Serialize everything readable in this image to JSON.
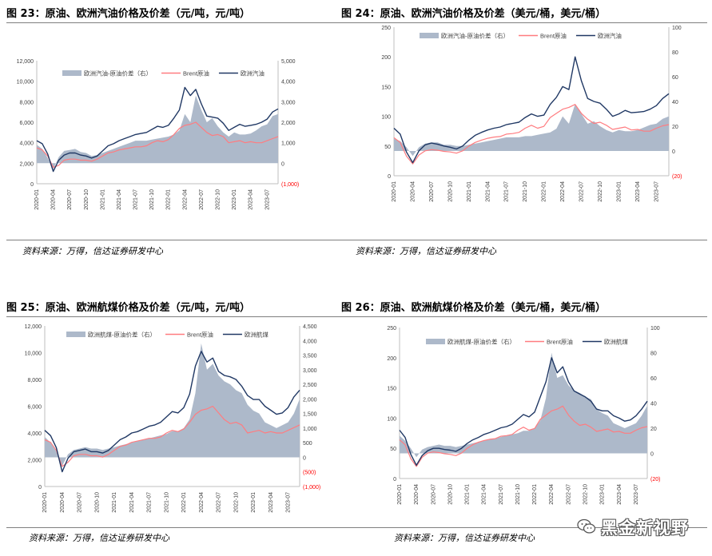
{
  "panels": [
    {
      "id": "p23",
      "title": "图 23：原油、欧洲汽油价格及价差（元/吨，元/吨）",
      "source": "资料来源：万得，信达证券研发中心",
      "chart_data": {
        "type": "area+line",
        "x_tick_labels": [
          "2020-01",
          "2020-04",
          "2020-07",
          "2020-10",
          "2021-01",
          "2021-04",
          "2021-07",
          "2021-10",
          "2022-01",
          "2022-04",
          "2022-07",
          "2022-10",
          "2023-01",
          "2023-04",
          "2023-07"
        ],
        "x_range": [
          "2020-01",
          "2023-09"
        ],
        "left_axis": {
          "range": [
            0,
            12000
          ],
          "ticks": [
            "0",
            "2,000",
            "4,000",
            "6,000",
            "8,000",
            "10,000",
            "12,000"
          ]
        },
        "right_axis": {
          "range": [
            -1000,
            5000
          ],
          "ticks": [
            "(1,000)",
            "0",
            "1,000",
            "2,000",
            "3,000",
            "4,000",
            "5,000"
          ],
          "negative_color": "#ff0000"
        },
        "legend": [
          "欧洲汽油-原油价差（右）",
          "Brent原油",
          "欧洲汽油"
        ],
        "legend_position": "top",
        "series": [
          {
            "name": "欧洲汽油-原油价差（右）",
            "axis": "right",
            "kind": "area",
            "color": "#adb9ca",
            "values": [
              900,
              700,
              250,
              -300,
              300,
              600,
              650,
              700,
              550,
              500,
              350,
              400,
              500,
              600,
              700,
              800,
              900,
              1000,
              1100,
              1100,
              1100,
              1150,
              1200,
              1250,
              1300,
              1400,
              1600,
              2400,
              2000,
              3300,
              2600,
              2000,
              2200,
              1800,
              1500,
              1300,
              1500,
              1400,
              1400,
              1450,
              1600,
              1800,
              1900,
              2300,
              2400
            ]
          },
          {
            "name": "Brent原油",
            "axis": "left",
            "kind": "line",
            "color": "#ff7c80",
            "values": [
              3500,
              3300,
              2700,
              1600,
              1800,
              2300,
              2400,
              2400,
              2300,
              2300,
              2200,
              2400,
              2700,
              3000,
              3100,
              3300,
              3400,
              3500,
              3600,
              3600,
              3700,
              4000,
              4200,
              4100,
              4300,
              4800,
              5400,
              5700,
              5800,
              6000,
              5500,
              5000,
              4700,
              4800,
              4600,
              4000,
              4100,
              4200,
              4000,
              4100,
              4000,
              4000,
              4200,
              4400,
              4600
            ]
          },
          {
            "name": "欧洲汽油",
            "axis": "left",
            "kind": "line",
            "color": "#203864",
            "values": [
              4200,
              3900,
              2900,
              1200,
              2300,
              2800,
              3000,
              3000,
              2800,
              2700,
              2500,
              2700,
              3200,
              3700,
              3900,
              4200,
              4400,
              4600,
              4800,
              4900,
              5000,
              5300,
              5600,
              5500,
              5700,
              6400,
              7200,
              9400,
              8600,
              9200,
              7800,
              6600,
              6500,
              6400,
              5900,
              5200,
              5500,
              5800,
              5600,
              5700,
              5800,
              6000,
              6300,
              7000,
              7300
            ]
          }
        ]
      }
    },
    {
      "id": "p24",
      "title": "图 24：原油、欧洲汽油价格及价差（美元/桶，美元/桶）",
      "source": "资料来源：万得，信达证券研发中心",
      "chart_data": {
        "type": "area+line",
        "x_tick_labels": [
          "2020-01",
          "2020-04",
          "2020-07",
          "2020-10",
          "2021-01",
          "2021-04",
          "2021-07",
          "2021-10",
          "2022-01",
          "2022-04",
          "2022-07",
          "2022-10",
          "2023-01",
          "2023-04",
          "2023-07"
        ],
        "x_range": [
          "2020-01",
          "2023-09"
        ],
        "left_axis": {
          "range": [
            0,
            250
          ],
          "ticks": [
            "0",
            "50",
            "100",
            "150",
            "200",
            "250"
          ]
        },
        "right_axis": {
          "range": [
            -20,
            100
          ],
          "ticks": [
            "(20)",
            "0",
            "20",
            "40",
            "60",
            "80",
            "100"
          ],
          "negative_color": "#ff0000"
        },
        "legend": [
          "欧洲汽油-原油价差（右）",
          "Brent原油",
          "欧洲汽油"
        ],
        "legend_position": "top",
        "series": [
          {
            "name": "欧洲汽油-原油价差（右）",
            "axis": "right",
            "kind": "area",
            "color": "#adb9ca",
            "values": [
              10,
              8,
              3,
              -4,
              3,
              6,
              7,
              7,
              5,
              5,
              4,
              4,
              5,
              6,
              7,
              8,
              9,
              10,
              11,
              11,
              11,
              12,
              12,
              13,
              14,
              15,
              18,
              28,
              22,
              38,
              30,
              22,
              24,
              20,
              17,
              15,
              17,
              16,
              16,
              17,
              19,
              21,
              22,
              26,
              28
            ]
          },
          {
            "name": "Brent原油",
            "axis": "left",
            "kind": "line",
            "color": "#ff7c80",
            "values": [
              64,
              56,
              33,
              20,
              35,
              42,
              44,
              43,
              41,
              40,
              38,
              42,
              50,
              56,
              60,
              63,
              65,
              66,
              70,
              71,
              73,
              80,
              85,
              80,
              83,
              98,
              105,
              112,
              115,
              120,
              105,
              95,
              88,
              90,
              85,
              78,
              80,
              82,
              77,
              78,
              75,
              75,
              80,
              84,
              86
            ]
          },
          {
            "name": "欧洲汽油",
            "axis": "left",
            "kind": "line",
            "color": "#203864",
            "values": [
              80,
              70,
              40,
              22,
              42,
              52,
              55,
              53,
              50,
              48,
              45,
              50,
              60,
              68,
              73,
              77,
              80,
              82,
              86,
              88,
              90,
              98,
              104,
              100,
              102,
              120,
              132,
              150,
              145,
              200,
              160,
              130,
              125,
              122,
              112,
              100,
              104,
              110,
              106,
              107,
              108,
              112,
              118,
              130,
              138
            ]
          }
        ]
      }
    },
    {
      "id": "p25",
      "title": "图 25：原油、欧洲航煤价格及价差（元/吨，元/吨）",
      "source": "资料来源：万得，信达证券研发中心",
      "chart_data": {
        "type": "area+line",
        "x_tick_labels": [
          "2020-01",
          "2020-04",
          "2020-07",
          "2020-10",
          "2021-01",
          "2021-04",
          "2021-07",
          "2021-10",
          "2022-01",
          "2022-04",
          "2022-07",
          "2022-10",
          "2023-01",
          "2023-04",
          "2023-07"
        ],
        "x_range": [
          "2020-01",
          "2023-09"
        ],
        "left_axis": {
          "range": [
            0,
            12000
          ],
          "ticks": [
            "0",
            "2,000",
            "4,000",
            "6,000",
            "8,000",
            "10,000",
            "12,000"
          ]
        },
        "right_axis": {
          "range": [
            -1000,
            4500
          ],
          "ticks": [
            "(1,000)",
            "(500)",
            "0",
            "500",
            "1,000",
            "1,500",
            "2,000",
            "2,500",
            "3,000",
            "3,500",
            "4,000",
            "4,500"
          ],
          "negative_color": "#ff0000"
        },
        "legend": [
          "欧洲航煤-原油价差（右）",
          "Brent原油",
          "欧洲航煤"
        ],
        "legend_position": "top",
        "series": [
          {
            "name": "欧洲航煤-原油价差（右）",
            "axis": "right",
            "kind": "area",
            "color": "#adb9ca",
            "values": [
              700,
              500,
              200,
              -300,
              100,
              250,
              300,
              350,
              300,
              300,
              250,
              300,
              350,
              400,
              450,
              500,
              550,
              600,
              650,
              700,
              750,
              800,
              900,
              900,
              1000,
              1300,
              2200,
              3900,
              3000,
              3200,
              2800,
              2600,
              2500,
              2300,
              2200,
              1800,
              1600,
              1500,
              1200,
              1100,
              1000,
              1100,
              1200,
              1500,
              2000
            ]
          },
          {
            "name": "Brent原油",
            "axis": "left",
            "kind": "line",
            "color": "#ff7c80",
            "values": [
              3500,
              3300,
              2700,
              1500,
              1800,
              2300,
              2400,
              2400,
              2300,
              2300,
              2200,
              2400,
              2700,
              3000,
              3100,
              3300,
              3400,
              3500,
              3600,
              3600,
              3700,
              4000,
              4200,
              4100,
              4300,
              4800,
              5400,
              5700,
              5800,
              6000,
              5500,
              5000,
              4700,
              4800,
              4600,
              4000,
              4100,
              4200,
              4000,
              4100,
              4000,
              4000,
              4200,
              4400,
              4600
            ]
          },
          {
            "name": "欧洲航煤",
            "axis": "left",
            "kind": "line",
            "color": "#203864",
            "values": [
              4200,
              3800,
              2900,
              1100,
              2100,
              2600,
              2700,
              2800,
              2600,
              2600,
              2500,
              2700,
              3100,
              3500,
              3700,
              4000,
              4100,
              4300,
              4500,
              4600,
              4800,
              5200,
              5600,
              5500,
              5900,
              6900,
              9000,
              10100,
              9300,
              9600,
              8600,
              8300,
              8200,
              8000,
              7500,
              6800,
              6500,
              6500,
              6000,
              5700,
              5400,
              5500,
              5900,
              6700,
              7200
            ]
          }
        ]
      }
    },
    {
      "id": "p26",
      "title": "图 26：原油、欧洲航煤价格及价差（美元/桶，美元/桶）",
      "source": "资料来源：万得，信达证券研发中心",
      "chart_data": {
        "type": "area+line",
        "x_tick_labels": [
          "2020-01",
          "2020-04",
          "2020-07",
          "2020-10",
          "2021-01",
          "2021-04",
          "2021-07",
          "2021-10",
          "2022-01",
          "2022-04",
          "2022-07",
          "2022-10",
          "2023-01",
          "2023-04",
          "2023-07"
        ],
        "x_range": [
          "2020-01",
          "2023-09"
        ],
        "left_axis": {
          "range": [
            0,
            250
          ],
          "ticks": [
            "0",
            "50",
            "100",
            "150",
            "200",
            "250"
          ]
        },
        "right_axis": {
          "range": [
            -20,
            100
          ],
          "ticks": [
            "(20)",
            "0",
            "20",
            "40",
            "60",
            "80",
            "100"
          ],
          "negative_color": "#ff0000"
        },
        "legend": [
          "欧洲航煤-原油价差（右）",
          "Brent原油",
          "欧洲航煤"
        ],
        "legend_position": "top",
        "series": [
          {
            "name": "欧洲航煤-原油价差（右）",
            "axis": "right",
            "kind": "area",
            "color": "#adb9ca",
            "values": [
              14,
              10,
              4,
              -3,
              3,
              5,
              6,
              7,
              6,
              6,
              5,
              6,
              7,
              8,
              9,
              10,
              11,
              12,
              13,
              14,
              15,
              16,
              18,
              18,
              20,
              26,
              44,
              80,
              60,
              62,
              54,
              50,
              48,
              45,
              43,
              35,
              32,
              30,
              24,
              22,
              20,
              22,
              24,
              30,
              38
            ]
          },
          {
            "name": "Brent原油",
            "axis": "left",
            "kind": "line",
            "color": "#ff7c80",
            "values": [
              64,
              56,
              33,
              20,
              35,
              42,
              44,
              43,
              41,
              40,
              38,
              42,
              50,
              56,
              60,
              63,
              65,
              66,
              70,
              71,
              73,
              80,
              85,
              80,
              83,
              98,
              105,
              112,
              115,
              120,
              105,
              95,
              88,
              90,
              85,
              78,
              80,
              82,
              77,
              78,
              75,
              75,
              80,
              84,
              86
            ]
          },
          {
            "name": "欧洲航煤",
            "axis": "left",
            "kind": "line",
            "color": "#203864",
            "values": [
              80,
              68,
              40,
              22,
              38,
              46,
              50,
              50,
              48,
              47,
              45,
              50,
              58,
              64,
              68,
              73,
              76,
              80,
              84,
              86,
              90,
              98,
              106,
              102,
              110,
              135,
              160,
              200,
              175,
              185,
              160,
              145,
              140,
              135,
              128,
              115,
              112,
              112,
              104,
              100,
              95,
              97,
              104,
              115,
              128
            ]
          }
        ]
      }
    }
  ],
  "watermark": {
    "text": "黑金新视野",
    "icon": "wechat-icon"
  },
  "colors": {
    "spread_area": "#adb9ca",
    "brent_line": "#ff7c80",
    "product_line": "#203864",
    "negative_tick": "#ff0000",
    "axis": "#bfbfbf"
  }
}
